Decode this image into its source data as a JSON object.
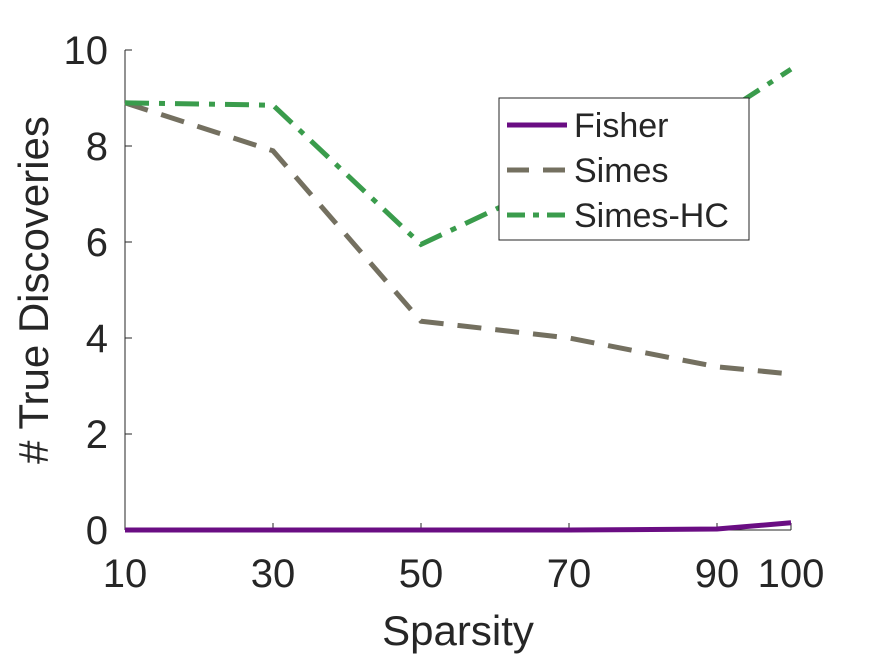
{
  "chart_data": {
    "type": "line",
    "title": "",
    "xlabel": "Sparsity",
    "ylabel": "# True Discoveries",
    "x": [
      10,
      30,
      50,
      70,
      90,
      100
    ],
    "xticks": [
      "10",
      "30",
      "50",
      "70",
      "90",
      "100"
    ],
    "yticks": [
      "0",
      "2",
      "4",
      "6",
      "8",
      "10"
    ],
    "xlim": [
      10,
      100
    ],
    "ylim": [
      0,
      10
    ],
    "grid": false,
    "legend_position": "top-right",
    "series": [
      {
        "name": "Fisher",
        "values": [
          0,
          0,
          0,
          0,
          0.02,
          0.15
        ],
        "color": "#6a0d83",
        "style": "solid"
      },
      {
        "name": "Simes",
        "values": [
          8.9,
          7.9,
          4.35,
          4.0,
          3.4,
          3.25
        ],
        "color": "#747060",
        "style": "dashed"
      },
      {
        "name": "Simes-HC",
        "values": [
          8.9,
          8.85,
          5.95,
          7.4,
          8.6,
          9.6
        ],
        "color": "#3a9c4c",
        "style": "dashdot"
      }
    ]
  }
}
